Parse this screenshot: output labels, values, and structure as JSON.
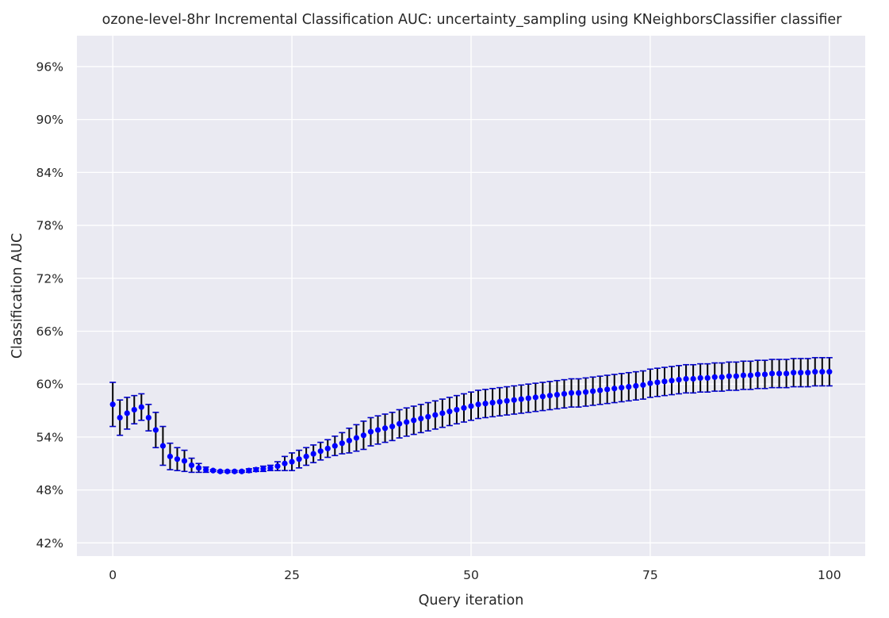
{
  "chart_data": {
    "type": "scatter",
    "title": "ozone-level-8hr Incremental Classification AUC: uncertainty_sampling using KNeighborsClassifier classifier",
    "xlabel": "Query iteration",
    "ylabel": "Classification AUC",
    "xlim": [
      -5,
      105
    ],
    "ylim": [
      0.405,
      0.995
    ],
    "x_ticks": [
      0,
      25,
      50,
      75,
      100
    ],
    "x_tick_labels": [
      "0",
      "25",
      "50",
      "75",
      "100"
    ],
    "y_ticks": [
      0.42,
      0.48,
      0.54,
      0.6,
      0.66,
      0.72,
      0.78,
      0.84,
      0.9,
      0.96
    ],
    "y_tick_labels": [
      "42%",
      "48%",
      "54%",
      "60%",
      "66%",
      "72%",
      "78%",
      "84%",
      "90%",
      "96%"
    ],
    "grid": true,
    "background": "#eaeaf2",
    "gridline_color": "#ffffff",
    "point_color": "#0000ff",
    "errorbar_color": "#000000",
    "cap_color": "#0000cc",
    "series": [
      {
        "x": [
          0,
          1,
          2,
          3,
          4,
          5,
          6,
          7,
          8,
          9,
          10,
          11,
          12,
          13,
          14,
          15,
          16,
          17,
          18,
          19,
          20,
          21,
          22,
          23,
          24,
          25,
          26,
          27,
          28,
          29,
          30,
          31,
          32,
          33,
          34,
          35,
          36,
          37,
          38,
          39,
          40,
          41,
          42,
          43,
          44,
          45,
          46,
          47,
          48,
          49,
          50,
          51,
          52,
          53,
          54,
          55,
          56,
          57,
          58,
          59,
          60,
          61,
          62,
          63,
          64,
          65,
          66,
          67,
          68,
          69,
          70,
          71,
          72,
          73,
          74,
          75,
          76,
          77,
          78,
          79,
          80,
          81,
          82,
          83,
          84,
          85,
          86,
          87,
          88,
          89,
          90,
          91,
          92,
          93,
          94,
          95,
          96,
          97,
          98,
          99,
          100
        ],
        "y": [
          0.577,
          0.562,
          0.567,
          0.571,
          0.574,
          0.562,
          0.548,
          0.53,
          0.518,
          0.515,
          0.513,
          0.508,
          0.505,
          0.503,
          0.502,
          0.501,
          0.501,
          0.501,
          0.501,
          0.502,
          0.503,
          0.504,
          0.505,
          0.507,
          0.51,
          0.512,
          0.515,
          0.518,
          0.521,
          0.524,
          0.527,
          0.53,
          0.533,
          0.536,
          0.539,
          0.542,
          0.546,
          0.548,
          0.55,
          0.552,
          0.555,
          0.557,
          0.559,
          0.561,
          0.563,
          0.565,
          0.567,
          0.569,
          0.571,
          0.573,
          0.575,
          0.577,
          0.578,
          0.579,
          0.58,
          0.581,
          0.582,
          0.583,
          0.584,
          0.585,
          0.586,
          0.587,
          0.588,
          0.589,
          0.59,
          0.59,
          0.591,
          0.592,
          0.593,
          0.594,
          0.595,
          0.596,
          0.597,
          0.598,
          0.599,
          0.601,
          0.602,
          0.603,
          0.604,
          0.605,
          0.606,
          0.606,
          0.607,
          0.607,
          0.608,
          0.608,
          0.609,
          0.609,
          0.61,
          0.61,
          0.611,
          0.611,
          0.612,
          0.612,
          0.612,
          0.613,
          0.613,
          0.613,
          0.614,
          0.614,
          0.614
        ],
        "error": [
          0.025,
          0.02,
          0.018,
          0.016,
          0.015,
          0.015,
          0.02,
          0.022,
          0.015,
          0.013,
          0.012,
          0.008,
          0.005,
          0.003,
          0.001,
          0.001,
          0.001,
          0.001,
          0.001,
          0.002,
          0.002,
          0.003,
          0.003,
          0.005,
          0.008,
          0.01,
          0.01,
          0.01,
          0.01,
          0.01,
          0.01,
          0.011,
          0.012,
          0.014,
          0.015,
          0.016,
          0.016,
          0.016,
          0.016,
          0.016,
          0.016,
          0.016,
          0.016,
          0.016,
          0.016,
          0.016,
          0.016,
          0.016,
          0.016,
          0.016,
          0.016,
          0.016,
          0.016,
          0.016,
          0.016,
          0.016,
          0.016,
          0.016,
          0.016,
          0.016,
          0.016,
          0.016,
          0.016,
          0.016,
          0.016,
          0.016,
          0.016,
          0.016,
          0.016,
          0.016,
          0.016,
          0.016,
          0.016,
          0.016,
          0.016,
          0.016,
          0.016,
          0.016,
          0.016,
          0.016,
          0.016,
          0.016,
          0.016,
          0.016,
          0.016,
          0.016,
          0.016,
          0.016,
          0.016,
          0.016,
          0.016,
          0.016,
          0.016,
          0.016,
          0.016,
          0.016,
          0.016,
          0.016,
          0.016,
          0.016,
          0.016
        ]
      }
    ]
  }
}
